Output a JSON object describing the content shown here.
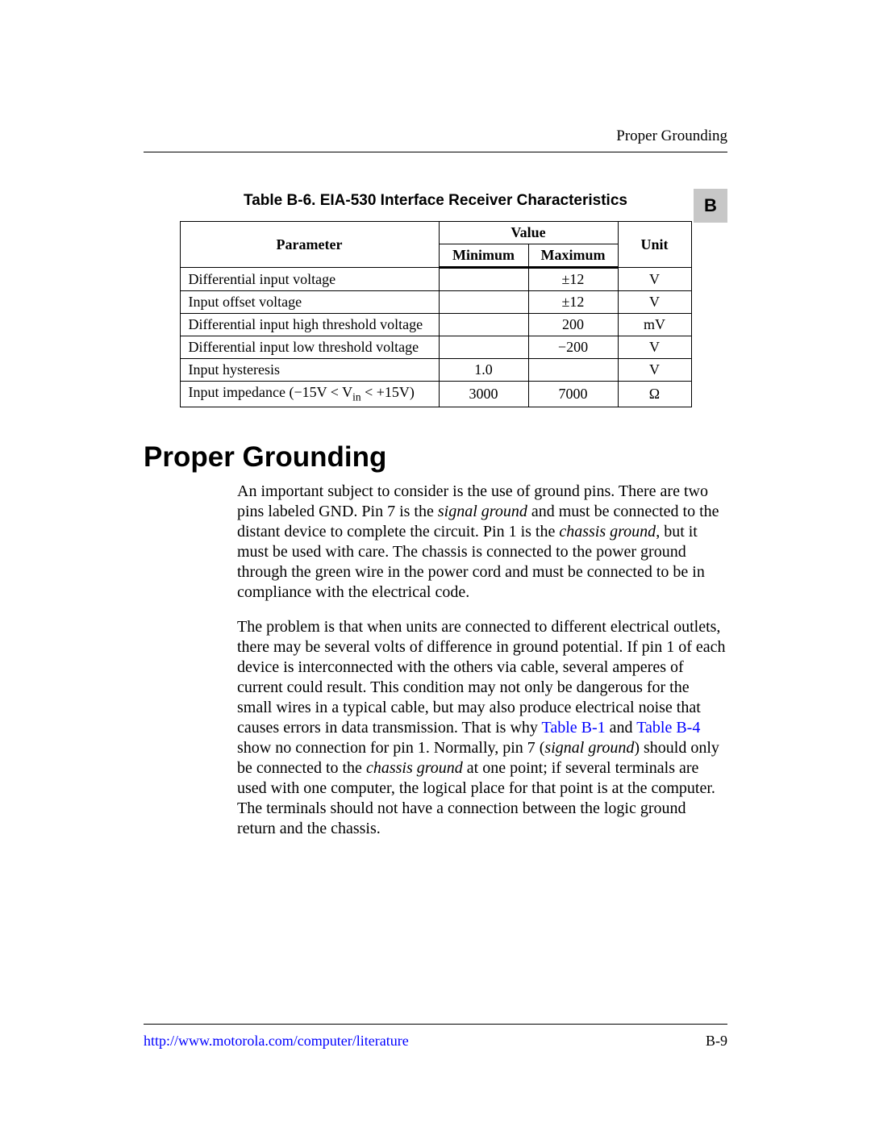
{
  "header": {
    "running_title": "Proper Grounding",
    "section_letter": "B"
  },
  "table": {
    "caption": "Table B-6.  EIA-530 Interface Receiver Characteristics",
    "col_parameter": "Parameter",
    "col_value": "Value",
    "col_min": "Minimum",
    "col_max": "Maximum",
    "col_unit": "Unit",
    "rows": [
      {
        "param": "Differential input voltage",
        "min": "",
        "max": "±12",
        "unit": "V"
      },
      {
        "param": "Input offset voltage",
        "min": "",
        "max": "±12",
        "unit": "V"
      },
      {
        "param": "Differential input high threshold voltage",
        "min": "",
        "max": "200",
        "unit": "mV"
      },
      {
        "param": "Differential input low threshold voltage",
        "min": "",
        "max": "−200",
        "unit": "V"
      },
      {
        "param": "Input hysteresis",
        "min": "1.0",
        "max": "",
        "unit": "V"
      },
      {
        "param_html": "Input impedance (−15V &lt; V<span class=\"sub\">in</span> &lt; +15V)",
        "min": "3000",
        "max": "7000",
        "unit": "Ω"
      }
    ]
  },
  "section": {
    "heading": "Proper Grounding",
    "para1_a": "An important subject to consider is the use of ground pins. There are two pins labeled GND. Pin 7 is the ",
    "para1_i1": "signal ground",
    "para1_b": " and must be connected to the distant device to complete the circuit. Pin 1 is the ",
    "para1_i2": "chassis ground",
    "para1_c": ", but it must be used with care. The chassis is connected to the power ground through the green wire in the power cord and must be connected to be in compliance with the electrical code.",
    "para2_a": "The problem is that when units are connected to different electrical outlets, there may be several volts of difference in ground potential. If pin 1 of each device is interconnected with the others via cable, several amperes of current could result. This condition may not only be dangerous for the small wires in a typical cable, but may also produce electrical noise that causes errors in data transmission. That is why ",
    "para2_x1": "Table B-1",
    "para2_b": " and ",
    "para2_x2": "Table B-4",
    "para2_c": " show no connection for pin 1. Normally, pin 7 (",
    "para2_i1": "signal ground",
    "para2_d": ") should only be connected to the ",
    "para2_i2": "chassis ground",
    "para2_e": " at one point; if several terminals are used with one computer, the logical place for that point is at the computer. The terminals should not have a connection between the logic ground return and the chassis."
  },
  "footer": {
    "url": "http://www.motorola.com/computer/literature",
    "page_num": "B-9"
  }
}
